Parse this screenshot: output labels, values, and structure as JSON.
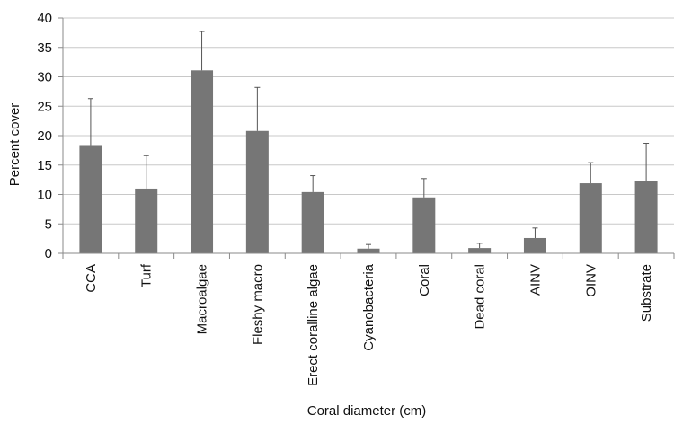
{
  "chart_data": {
    "type": "bar",
    "title": "",
    "xlabel": "Coral diameter (cm)",
    "ylabel": "Percent cover",
    "ylim": [
      0,
      40
    ],
    "yticks": [
      0,
      5,
      10,
      15,
      20,
      25,
      30,
      35,
      40
    ],
    "grid": true,
    "legend": "none",
    "bar_color": "#767676",
    "categories": [
      "CCA",
      "Turf",
      "Macroalgae",
      "Fleshy macro",
      "Erect coralline algae",
      "Cyanobacteria",
      "Coral",
      "Dead coral",
      "AINV",
      "OINV",
      "Substrate"
    ],
    "values": [
      18.4,
      11.0,
      31.1,
      20.8,
      10.4,
      0.8,
      9.5,
      0.9,
      2.6,
      11.9,
      12.3
    ],
    "error_upper": [
      26.3,
      16.6,
      37.7,
      28.2,
      13.2,
      1.5,
      12.7,
      1.7,
      4.3,
      15.4,
      18.7
    ]
  }
}
